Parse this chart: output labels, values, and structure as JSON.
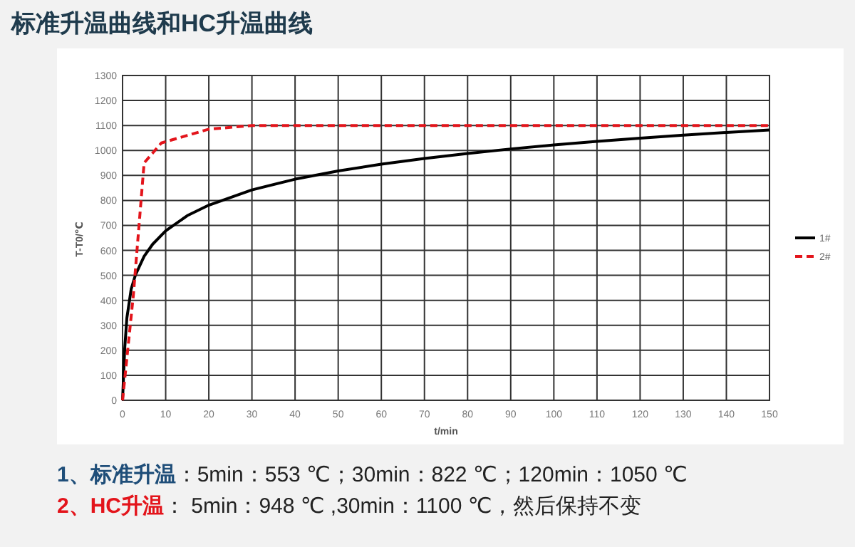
{
  "chart_data": {
    "type": "line",
    "title": "标准升温曲线和HC升温曲线",
    "xlabel": "t/min",
    "ylabel": "T-T0/℃",
    "xlim": [
      0,
      150
    ],
    "ylim": [
      0,
      1300
    ],
    "xticks": [
      0,
      10,
      20,
      30,
      40,
      50,
      60,
      70,
      80,
      90,
      100,
      110,
      120,
      130,
      140,
      150
    ],
    "yticks": [
      0,
      100,
      200,
      300,
      400,
      500,
      600,
      700,
      800,
      900,
      1000,
      1100,
      1200,
      1300
    ],
    "grid": true,
    "legend": "right",
    "marker": "none",
    "series": [
      {
        "name": "1#",
        "color": "#000000",
        "line_style": "solid",
        "x": [
          0,
          0.5,
          1,
          2,
          3,
          5,
          7,
          10,
          15,
          20,
          30,
          40,
          50,
          60,
          70,
          80,
          90,
          100,
          110,
          120,
          130,
          140,
          150
        ],
        "values": [
          0,
          207,
          329,
          445,
          502,
          576,
          625,
          678,
          739,
          781,
          842,
          885,
          918,
          945,
          968,
          988,
          1006,
          1022,
          1036,
          1049,
          1061,
          1072,
          1082
        ]
      },
      {
        "name": "2#",
        "color": "#e3141b",
        "line_style": "dashed",
        "x": [
          0,
          2.5,
          5,
          9,
          15,
          20,
          30,
          150
        ],
        "values": [
          0,
          420,
          950,
          1030,
          1060,
          1085,
          1100,
          1100
        ]
      }
    ],
    "annotations": [
      "**1、标准升温**：5min：553 ℃；30min：822 ℃；120min：1050 ℃",
      "**2、HC升温**： 5min：948 ℃ ,30min：1100 ℃，然后保持不变"
    ]
  }
}
